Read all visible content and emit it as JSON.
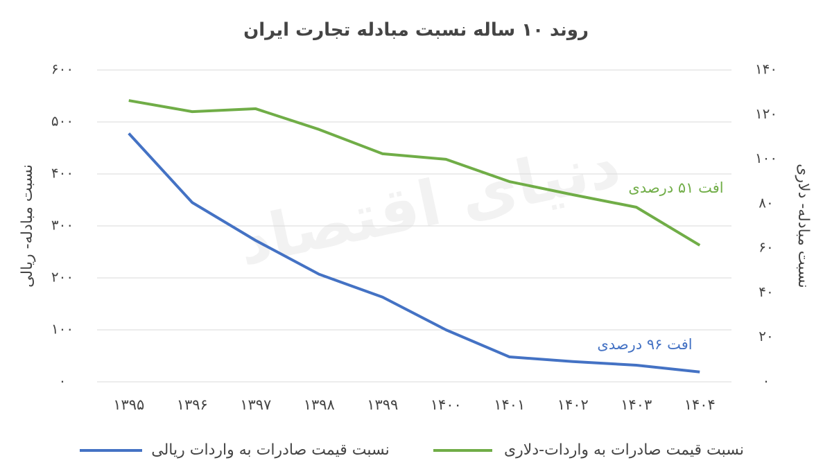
{
  "chart_data": {
    "type": "line",
    "title": "روند ۱۰ ساله نسبت مبادله تجارت ایران",
    "y_label": "نسبت مبادله- ریالی",
    "y2_label": "نسبت مبادله- دلاری",
    "watermark": "دنیای اقتصاد",
    "categories": [
      "۱۳۹۵",
      "۱۳۹۶",
      "۱۳۹۷",
      "۱۳۹۸",
      "۱۳۹۹",
      "۱۴۰۰",
      "۱۴۰۱",
      "۱۴۰۲",
      "۱۴۰۳",
      "۱۴۰۴"
    ],
    "series": [
      {
        "name": "نسبت قیمت صادرات به واردات ریالی",
        "color": "#4472c4",
        "axis": "y",
        "values": [
          478,
          345,
          272,
          207,
          163,
          100,
          48,
          39,
          32,
          19
        ],
        "annotation": "افت ۹۶ درصدی"
      },
      {
        "name": "نسبت قیمت صادرات به واردات-دلاری",
        "color": "#70ad47",
        "axis": "y2",
        "values": [
          126.3,
          121.3,
          122.6,
          113.3,
          102.4,
          99.9,
          89.9,
          84,
          78.4,
          61.3
        ],
        "annotation": "افت ۵۱ درصدی"
      }
    ],
    "ylim": [
      0,
      600
    ],
    "yticks": [
      {
        "value": 0,
        "label": "۰"
      },
      {
        "value": 100,
        "label": "۱۰۰"
      },
      {
        "value": 200,
        "label": "۲۰۰"
      },
      {
        "value": 300,
        "label": "۳۰۰"
      },
      {
        "value": 400,
        "label": "۴۰۰"
      },
      {
        "value": 500,
        "label": "۵۰۰"
      },
      {
        "value": 600,
        "label": "۶۰۰"
      }
    ],
    "y2lim": [
      0,
      140
    ],
    "y2ticks": [
      {
        "value": 0,
        "label": "۰"
      },
      {
        "value": 20,
        "label": "۲۰"
      },
      {
        "value": 40,
        "label": "۴۰"
      },
      {
        "value": 60,
        "label": "۶۰"
      },
      {
        "value": 80,
        "label": "۸۰"
      },
      {
        "value": 100,
        "label": "۱۰۰"
      },
      {
        "value": 120,
        "label": "۱۲۰"
      },
      {
        "value": 140,
        "label": "۱۴۰"
      }
    ],
    "grid": true
  }
}
